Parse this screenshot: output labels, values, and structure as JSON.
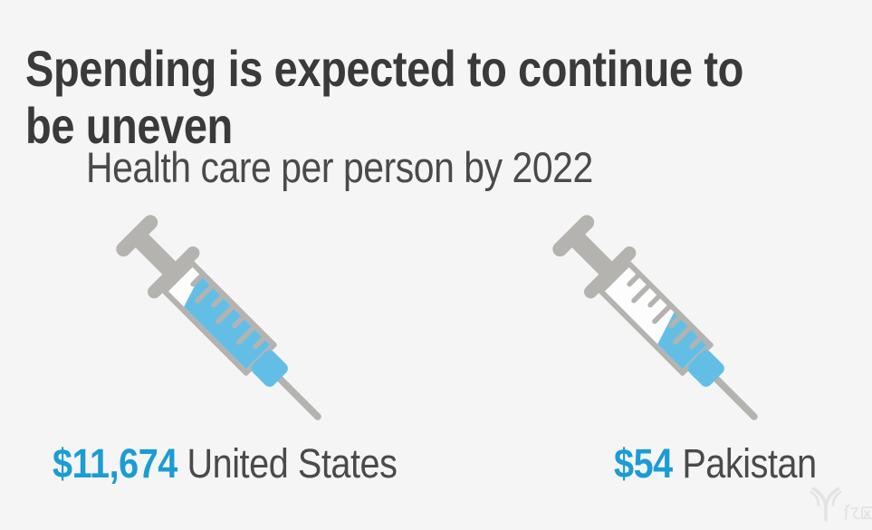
{
  "colors": {
    "bg": "#f4f5f4",
    "title-color": "#3a3a3a",
    "text-gray": "#4a4a4a",
    "accent-blue": "#1b9cd3",
    "syringe-gray": "#b4b3b0",
    "liquid-blue": "#63bee6",
    "watermark-gray": "#e2e3e1"
  },
  "header": {
    "title": "Spending is expected to continue to be uneven",
    "title_lines": [
      "Spending is expected to continue to",
      "be uneven"
    ]
  },
  "chart_data": {
    "type": "pictogram",
    "title": "Health care per person by 2022",
    "unit": "USD per person",
    "icon": "syringe-icon",
    "items": [
      {
        "country": "United States",
        "value": 11674,
        "value_label": "$11,674",
        "fill_percent": 85
      },
      {
        "country": "Pakistan",
        "value": 54,
        "value_label": "$54",
        "fill_percent": 37
      }
    ]
  },
  "watermark": {
    "text": "亿欧",
    "icon": "yiou-logo"
  }
}
